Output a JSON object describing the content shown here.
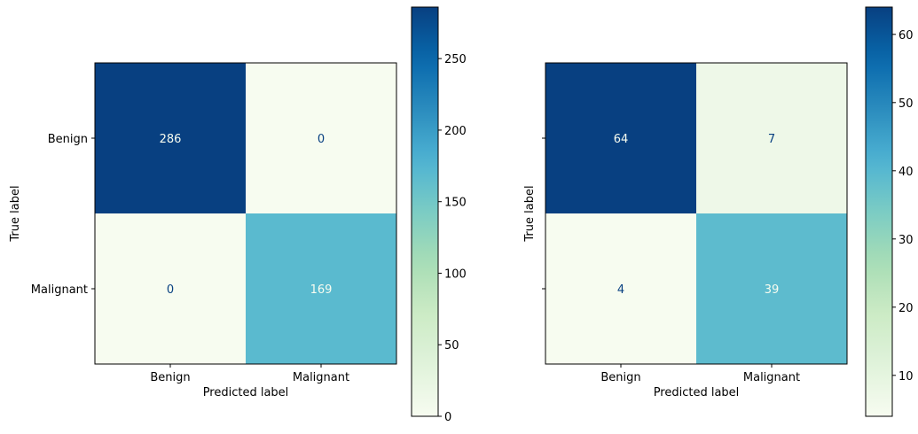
{
  "chart_data": [
    {
      "type": "heatmap",
      "title": "",
      "xlabel": "Predicted label",
      "ylabel": "True label",
      "x_categories": [
        "Benign",
        "Malignant"
      ],
      "y_categories": [
        "Benign",
        "Malignant"
      ],
      "values": [
        [
          286,
          0
        ],
        [
          0,
          169
        ]
      ],
      "cell_labels": [
        [
          "286",
          "0"
        ],
        [
          "0",
          "169"
        ]
      ],
      "colormap": "GnBu",
      "colorbar": {
        "vmin": 0,
        "vmax": 286,
        "ticks": [
          0,
          50,
          100,
          150,
          200,
          250
        ],
        "tick_labels": [
          "0",
          "50",
          "100",
          "150",
          "200",
          "250"
        ]
      }
    },
    {
      "type": "heatmap",
      "title": "",
      "xlabel": "Predicted label",
      "ylabel": "True label",
      "x_categories": [
        "Benign",
        "Malignant"
      ],
      "y_categories": [
        "Benign",
        "Malignant"
      ],
      "values": [
        [
          64,
          7
        ],
        [
          4,
          39
        ]
      ],
      "cell_labels": [
        [
          "64",
          "7"
        ],
        [
          "4",
          "39"
        ]
      ],
      "colormap": "GnBu",
      "colorbar": {
        "vmin": 4,
        "vmax": 64,
        "ticks": [
          10,
          20,
          30,
          40,
          50,
          60
        ],
        "tick_labels": [
          "10",
          "20",
          "30",
          "40",
          "50",
          "60"
        ]
      }
    }
  ]
}
